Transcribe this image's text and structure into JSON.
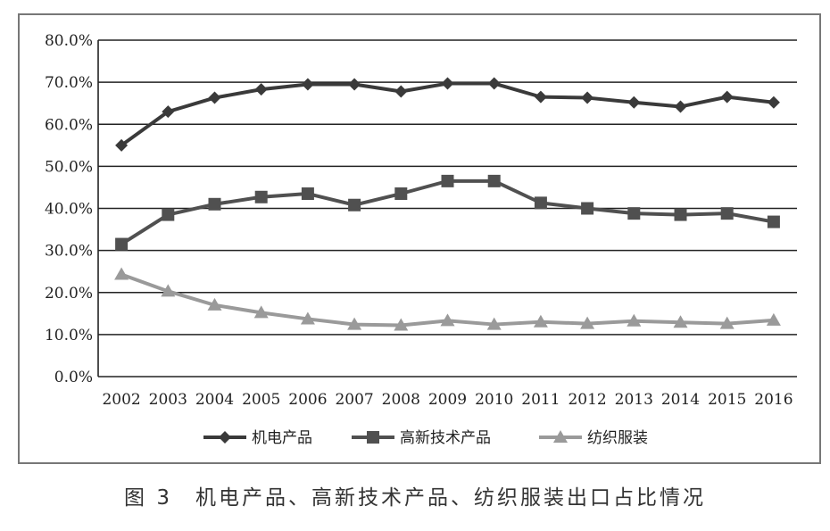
{
  "caption": "图 3　机电产品、高新技术产品、纺织服装出口占比情况",
  "chart_data": {
    "type": "line",
    "categories": [
      "2002",
      "2003",
      "2004",
      "2005",
      "2006",
      "2007",
      "2008",
      "2009",
      "2010",
      "2011",
      "2012",
      "2013",
      "2014",
      "2015",
      "2016"
    ],
    "y_ticks": [
      "0.0%",
      "10.0%",
      "20.0%",
      "30.0%",
      "40.0%",
      "50.0%",
      "60.0%",
      "70.0%",
      "80.0%"
    ],
    "ylim": [
      0,
      80
    ],
    "y_unit": "%",
    "grid": "horizontal",
    "legend_position": "bottom",
    "series": [
      {
        "name": "机电产品",
        "marker": "diamond",
        "color": "#3a3a3a",
        "values": [
          55.0,
          63.0,
          66.3,
          68.3,
          69.5,
          69.5,
          67.8,
          69.7,
          69.7,
          66.5,
          66.3,
          65.2,
          64.2,
          66.5,
          65.2
        ]
      },
      {
        "name": "高新技术产品",
        "marker": "square",
        "color": "#505050",
        "values": [
          31.5,
          38.5,
          41.0,
          42.7,
          43.5,
          40.8,
          43.5,
          46.5,
          46.5,
          41.3,
          40.0,
          38.8,
          38.5,
          38.8,
          36.8
        ]
      },
      {
        "name": "纺织服装",
        "marker": "triangle",
        "color": "#9a9a9a",
        "values": [
          24.3,
          20.3,
          17.0,
          15.2,
          13.7,
          12.4,
          12.2,
          13.3,
          12.4,
          13.0,
          12.6,
          13.2,
          12.9,
          12.6,
          13.4
        ]
      }
    ]
  }
}
